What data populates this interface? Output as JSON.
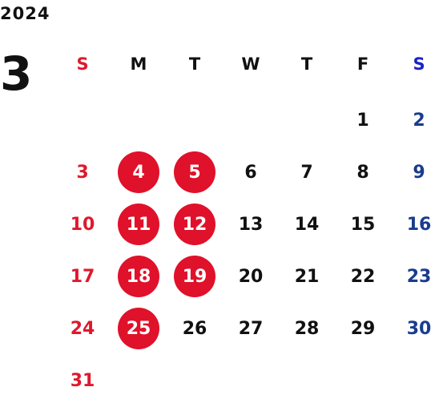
{
  "calendar": {
    "year": "2024",
    "month": "3",
    "weekdays": [
      "S",
      "M",
      "T",
      "W",
      "T",
      "F",
      "S"
    ],
    "start_weekday": 5,
    "days_in_month": 31,
    "marked_days": [
      4,
      5,
      11,
      12,
      18,
      19,
      25
    ]
  },
  "colors": {
    "sunday": "#e0182d",
    "saturday": "#1a3c8e",
    "saturday_header": "#1b22c8",
    "marked_circle": "#e0112a",
    "text": "#111111"
  }
}
